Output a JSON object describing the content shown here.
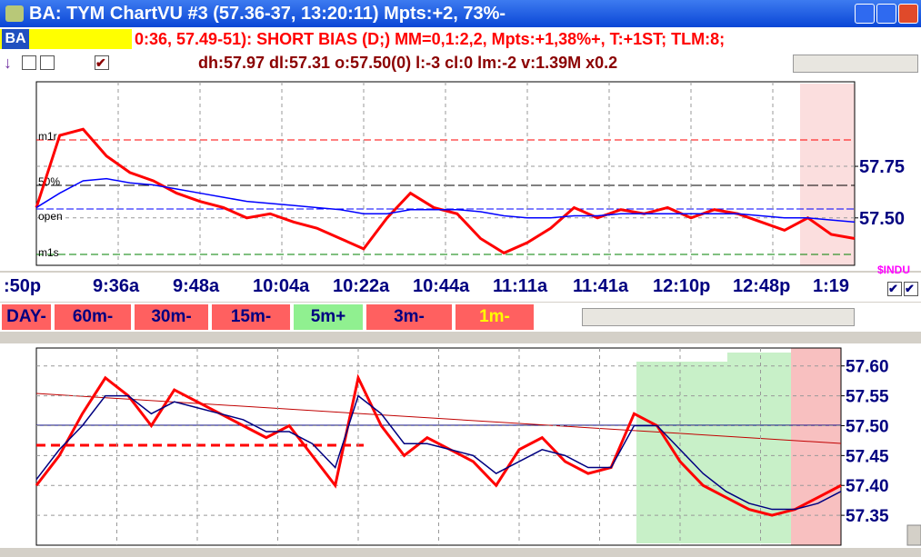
{
  "window": {
    "title": "BA: TYM ChartVU #3  (57.36-37, 13:20:11)  Mpts:+2, 73%-"
  },
  "status": {
    "symbol": "BA",
    "message": "0:36, 57.49-51): SHORT BIAS (D;) MM=0,1:2,2, Mpts:+1,38%+, T:+1ST; TLM:8;"
  },
  "info": {
    "arrow": "↓",
    "text": "dh:57.97 dl:57.31 o:57.50(0) l:-3 cl:0 lm:-2 v:1.39M x0.2"
  },
  "time_labels": [
    ":50p",
    "9:36a",
    "9:48a",
    "10:04a",
    "10:22a",
    "10:44a",
    "11:11a",
    "11:41a",
    "12:10p",
    "12:48p",
    "1:19"
  ],
  "index_label": "$INDU",
  "timeframes": [
    "DAY-",
    "60m-",
    "30m-",
    "15m-",
    "5m+",
    "3m-",
    "1m-"
  ],
  "chart_data": [
    {
      "type": "line",
      "grid": true,
      "level_labels": [
        "m1r",
        "50%",
        "open",
        "m1s"
      ],
      "ylim": [
        57.27,
        58.16
      ],
      "yticks": [
        57.75,
        {
          "value": 57.5,
          "label": "57.50"
        }
      ],
      "series": [
        {
          "color": "#ff0000",
          "values": [
            57.55,
            57.9,
            57.93,
            57.8,
            57.72,
            57.68,
            57.62,
            57.58,
            57.55,
            57.5,
            57.52,
            57.48,
            57.45,
            57.4,
            57.35,
            57.5,
            57.62,
            57.55,
            57.52,
            57.4,
            57.33,
            57.38,
            57.45,
            57.55,
            57.5,
            57.54,
            57.52,
            57.55,
            57.5,
            57.54,
            57.52,
            57.48,
            57.44,
            57.5,
            57.42,
            57.4
          ]
        },
        {
          "color": "#0000ff",
          "values": [
            57.55,
            57.62,
            57.68,
            57.69,
            57.67,
            57.66,
            57.64,
            57.62,
            57.6,
            57.58,
            57.57,
            57.56,
            57.55,
            57.54,
            57.52,
            57.52,
            57.54,
            57.54,
            57.54,
            57.53,
            57.51,
            57.5,
            57.5,
            57.51,
            57.51,
            57.52,
            57.52,
            57.52,
            57.52,
            57.52,
            57.52,
            57.51,
            57.5,
            57.5,
            57.49,
            57.48
          ]
        }
      ]
    },
    {
      "type": "line",
      "grid": true,
      "ylim": [
        57.3,
        57.63
      ],
      "yticks": [
        {
          "value": 57.6,
          "label": "57.60"
        },
        57.55,
        {
          "value": 57.5,
          "label": "57.50"
        },
        57.45,
        {
          "value": 57.4,
          "label": "57.40"
        },
        57.35
      ],
      "series": [
        {
          "color": "#ff0000",
          "values": [
            57.4,
            57.45,
            57.52,
            57.58,
            57.55,
            57.5,
            57.56,
            57.54,
            57.52,
            57.5,
            57.48,
            57.5,
            57.45,
            57.4,
            57.58,
            57.5,
            57.45,
            57.48,
            57.46,
            57.44,
            57.4,
            57.46,
            57.48,
            57.44,
            57.42,
            57.43,
            57.52,
            57.5,
            57.44,
            57.4,
            57.38,
            57.36,
            57.35,
            57.36,
            57.38,
            57.4
          ]
        },
        {
          "color": "#000080",
          "values": [
            57.41,
            57.46,
            57.5,
            57.55,
            57.55,
            57.52,
            57.54,
            57.53,
            57.52,
            57.51,
            57.49,
            57.49,
            57.47,
            57.43,
            57.55,
            57.52,
            57.47,
            57.47,
            57.46,
            57.45,
            57.42,
            57.44,
            57.46,
            57.45,
            57.43,
            57.43,
            57.5,
            57.5,
            57.46,
            57.42,
            57.39,
            57.37,
            57.36,
            57.36,
            57.37,
            57.39
          ]
        }
      ]
    }
  ]
}
